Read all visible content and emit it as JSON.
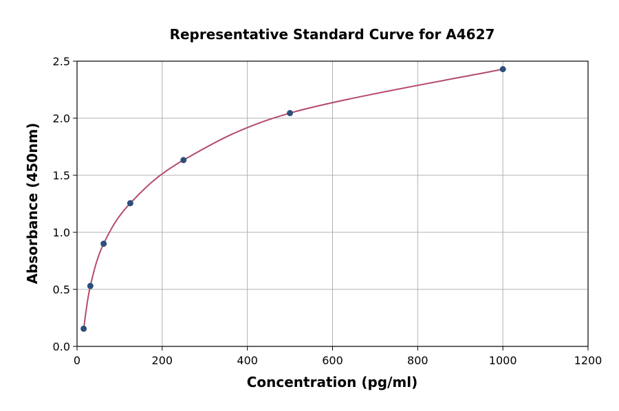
{
  "chart_data": {
    "type": "line",
    "title": "Representative Standard Curve for A4627",
    "xlabel": "Concentration (pg/ml)",
    "ylabel": "Absorbance (450nm)",
    "xlim": [
      0,
      1200
    ],
    "ylim": [
      0,
      2.5
    ],
    "xticks": [
      0,
      200,
      400,
      600,
      800,
      1000,
      1200
    ],
    "yticks": [
      "0.0",
      "0.5",
      "1.0",
      "1.5",
      "2.0",
      "2.5"
    ],
    "grid": true,
    "x": [
      15.6,
      31.25,
      62.5,
      125,
      250,
      500,
      1000
    ],
    "y": [
      0.155,
      0.53,
      0.9,
      1.255,
      1.633,
      2.045,
      2.43
    ],
    "colors": {
      "points": "#2d4f7c",
      "curve": "#b5496b",
      "grid": "#b0b0b0"
    }
  }
}
